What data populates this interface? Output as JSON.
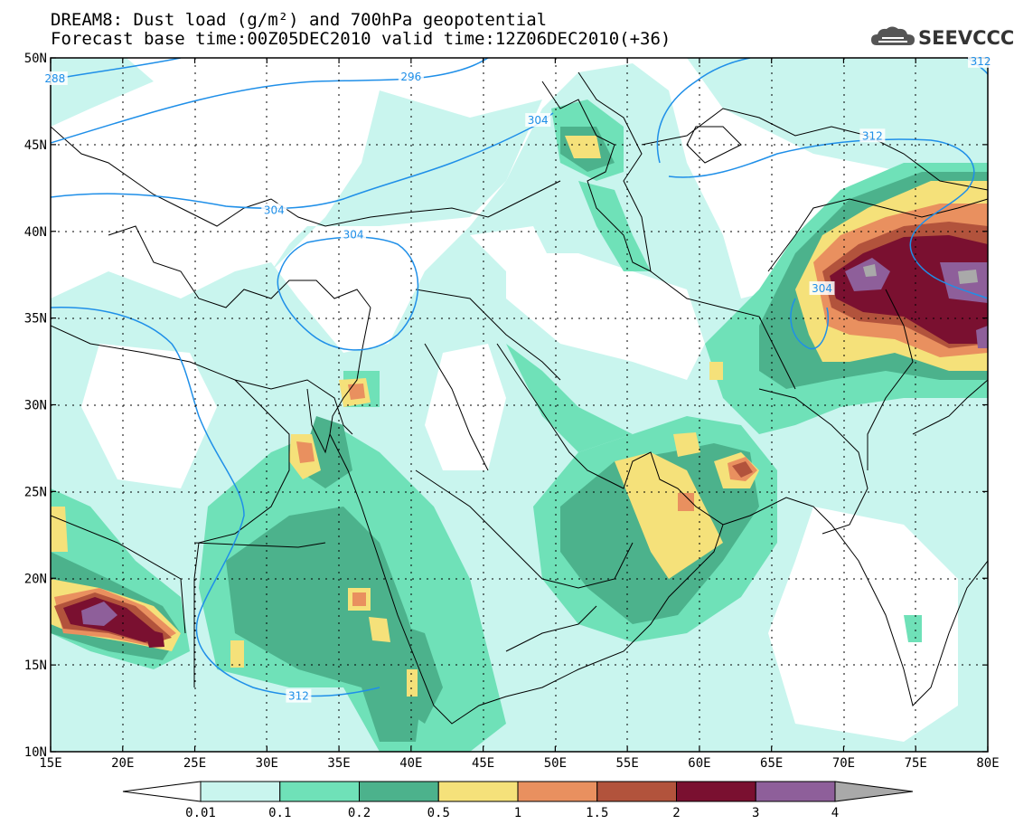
{
  "title": {
    "line1": "DREAM8: Dust load (g/m²) and 700hPa geopotential",
    "line2": "Forecast base time:00Z05DEC2010 valid time:12Z06DEC2010(+36)"
  },
  "logo": {
    "text": "SEEVCCC",
    "icon": "cloud-icon"
  },
  "map": {
    "lon_range": [
      15,
      80
    ],
    "lat_range": [
      10,
      50
    ],
    "lon_ticks": [
      "15E",
      "20E",
      "25E",
      "30E",
      "35E",
      "40E",
      "45E",
      "50E",
      "55E",
      "60E",
      "65E",
      "70E",
      "75E",
      "80E"
    ],
    "lat_ticks": [
      "10N",
      "15N",
      "20N",
      "25N",
      "30N",
      "35N",
      "40N",
      "45N",
      "50N"
    ],
    "contour_color": "#1f8fe8",
    "contour_labels": [
      {
        "text": "288",
        "lon": 15.3,
        "lat": 48.8
      },
      {
        "text": "296",
        "lon": 40.0,
        "lat": 48.9
      },
      {
        "text": "304",
        "lon": 48.8,
        "lat": 46.4
      },
      {
        "text": "304",
        "lon": 30.5,
        "lat": 41.2
      },
      {
        "text": "304",
        "lon": 36.0,
        "lat": 39.8
      },
      {
        "text": "304",
        "lon": 68.5,
        "lat": 36.7
      },
      {
        "text": "312",
        "lon": 72.0,
        "lat": 45.5
      },
      {
        "text": "312",
        "lon": 32.2,
        "lat": 13.2
      },
      {
        "text": "312",
        "lon": 79.5,
        "lat": 49.8
      }
    ]
  },
  "colorbar": {
    "labels": [
      "0.01",
      "0.1",
      "0.2",
      "0.5",
      "1",
      "1.5",
      "2",
      "3",
      "4"
    ],
    "colors": [
      "#c9f5ee",
      "#6fe1b8",
      "#4cb28c",
      "#f5e17a",
      "#e9905f",
      "#b2533c",
      "#7a1030",
      "#8e5f9a",
      "#a9a9a9"
    ]
  }
}
